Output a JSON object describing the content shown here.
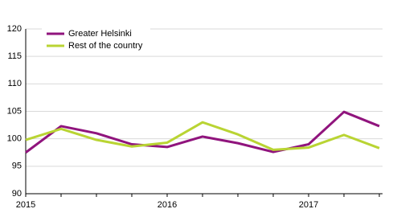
{
  "chart_data": {
    "type": "line",
    "categories": [
      "2015",
      null,
      null,
      null,
      "2016",
      null,
      null,
      null,
      "2017",
      null,
      null
    ],
    "series": [
      {
        "name": "Greater Helsinki",
        "color": "#90147d",
        "values": [
          97.5,
          102.3,
          101,
          99,
          98.5,
          100.4,
          99.2,
          97.6,
          99,
          104.9,
          102.3
        ]
      },
      {
        "name": "Rest of the country",
        "color": "#b9d433",
        "values": [
          99.8,
          101.8,
          99.8,
          98.6,
          99.3,
          103,
          100.8,
          98,
          98.4,
          100.7,
          98.3
        ]
      }
    ],
    "ylim": [
      90,
      120
    ],
    "yticks": [
      90,
      95,
      100,
      105,
      110,
      115,
      120
    ],
    "grid": true,
    "legend": "upper left"
  }
}
